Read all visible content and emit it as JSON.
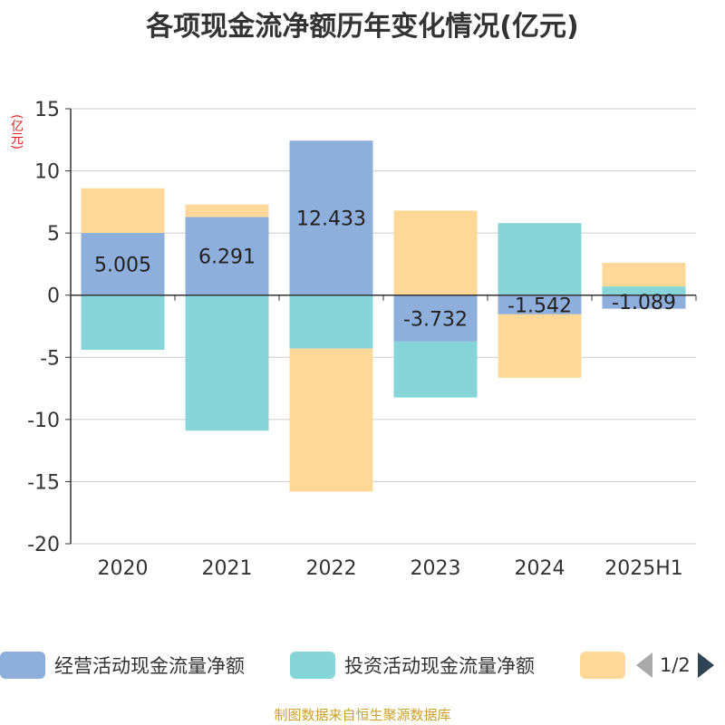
{
  "title": "各项现金流净额历年变化情况(亿元)",
  "unit_label": "(亿元)",
  "source": "制图数据来自恒生聚源数据库",
  "legend": {
    "items": [
      {
        "label": "经营活动现金流量净额",
        "color": "#8eaedb"
      },
      {
        "label": "投资活动现金流量净额",
        "color": "#86d5d8"
      },
      {
        "label": "",
        "color": "#ffd898"
      }
    ],
    "page": "1/2"
  },
  "chart_data": {
    "type": "bar",
    "stacked": true,
    "categories": [
      "2020",
      "2021",
      "2022",
      "2023",
      "2024",
      "2025H1"
    ],
    "ylim": [
      -20,
      15
    ],
    "yticks": [
      15,
      10,
      5,
      0,
      -5,
      -10,
      -15,
      -20
    ],
    "grid": true,
    "series": [
      {
        "name": "经营活动现金流量净额",
        "color": "#8eaedb",
        "values": [
          5.005,
          6.291,
          12.433,
          -3.732,
          -1.542,
          -1.089
        ],
        "labels": [
          "5.005",
          "6.291",
          "12.433",
          "-3.732",
          "-1.542",
          "-1.089"
        ]
      },
      {
        "name": "投资活动现金流量净额",
        "color": "#86d5d8",
        "values": [
          -4.4,
          -10.9,
          -4.3,
          -4.5,
          5.8,
          0.7
        ]
      },
      {
        "name": "",
        "color": "#ffd898",
        "values": [
          3.6,
          1.0,
          -11.5,
          6.8,
          -5.1,
          1.9
        ]
      }
    ]
  }
}
